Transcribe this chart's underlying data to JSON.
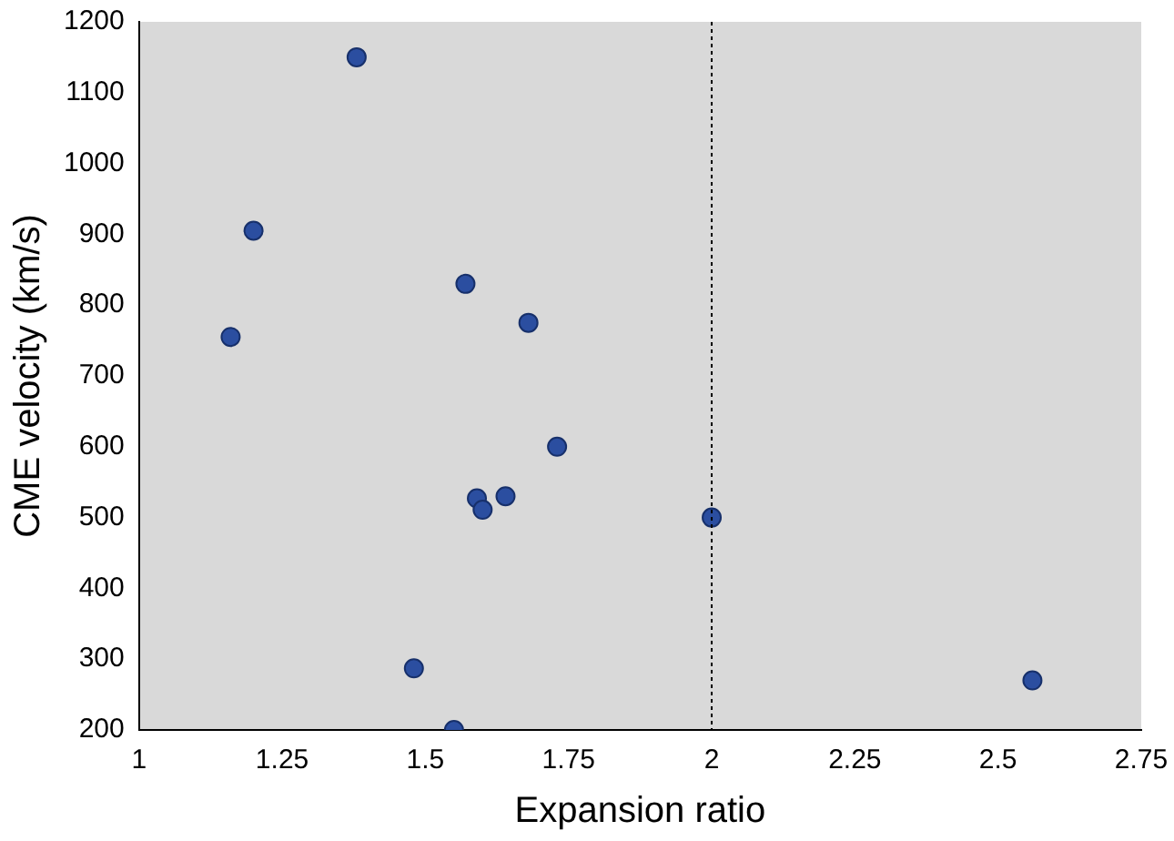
{
  "chart_data": {
    "type": "scatter",
    "xlabel": "Expansion ratio",
    "ylabel": "CME velocity (km/s)",
    "series": [
      {
        "color": "#2b4ea0",
        "x": [
          1.38,
          1.2,
          1.16,
          1.57,
          1.68,
          1.73,
          1.59,
          1.6,
          1.64,
          2.0,
          1.48,
          1.55,
          2.56
        ],
        "values": [
          1150,
          905,
          755,
          830,
          775,
          600,
          527,
          511,
          530,
          500,
          287,
          200,
          270
        ]
      }
    ],
    "xlim": [
      1,
      2.75
    ],
    "xticks": [
      1,
      1.25,
      1.5,
      1.75,
      2,
      2.25,
      2.5,
      2.75
    ],
    "ylim": [
      200,
      1200
    ],
    "yticks": [
      200,
      300,
      400,
      500,
      600,
      700,
      800,
      900,
      1000,
      1100,
      1200
    ],
    "ref_lines": [
      {
        "axis": "x",
        "value": 2,
        "color": "#000000",
        "line_style": "dotted"
      }
    ],
    "grid": false,
    "legend": false,
    "marker": "circle"
  }
}
